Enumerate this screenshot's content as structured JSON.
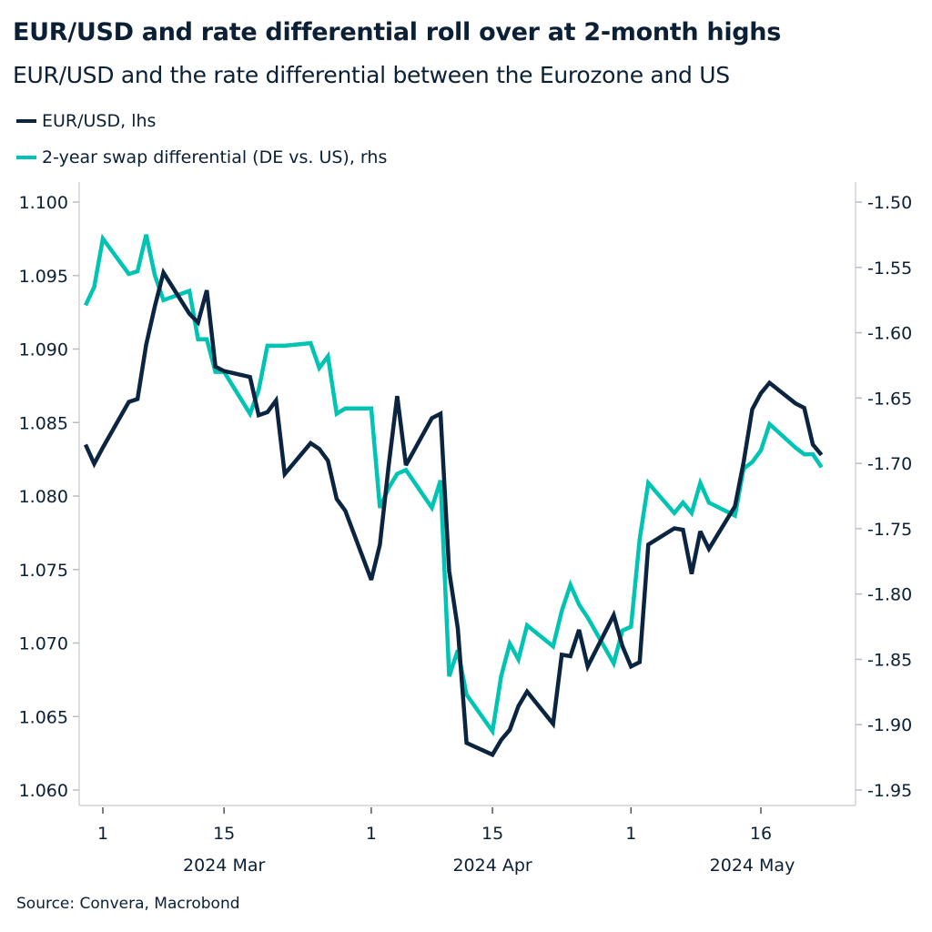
{
  "title": "EUR/USD and rate differential roll over at 2-month highs",
  "subtitle": "EUR/USD and the rate differential between the Eurozone and US",
  "source": "Source: Convera, Macrobond",
  "chart_data": {
    "type": "line",
    "title": "EUR/USD and rate differential roll over at 2-month highs",
    "subtitle": "EUR/USD and the rate differential between the Eurozone and US",
    "legend_position": "top-left",
    "grid": false,
    "x": [
      "2024-02-28",
      "2024-02-29",
      "2024-03-01",
      "2024-03-04",
      "2024-03-05",
      "2024-03-06",
      "2024-03-07",
      "2024-03-08",
      "2024-03-11",
      "2024-03-12",
      "2024-03-13",
      "2024-03-14",
      "2024-03-15",
      "2024-03-18",
      "2024-03-19",
      "2024-03-20",
      "2024-03-21",
      "2024-03-22",
      "2024-03-25",
      "2024-03-26",
      "2024-03-27",
      "2024-03-28",
      "2024-03-29",
      "2024-04-01",
      "2024-04-02",
      "2024-04-03",
      "2024-04-04",
      "2024-04-05",
      "2024-04-08",
      "2024-04-09",
      "2024-04-10",
      "2024-04-11",
      "2024-04-12",
      "2024-04-15",
      "2024-04-16",
      "2024-04-17",
      "2024-04-18",
      "2024-04-19",
      "2024-04-22",
      "2024-04-23",
      "2024-04-24",
      "2024-04-25",
      "2024-04-26",
      "2024-04-29",
      "2024-04-30",
      "2024-05-01",
      "2024-05-02",
      "2024-05-03",
      "2024-05-06",
      "2024-05-07",
      "2024-05-08",
      "2024-05-09",
      "2024-05-10",
      "2024-05-13",
      "2024-05-14",
      "2024-05-15",
      "2024-05-16",
      "2024-05-17",
      "2024-05-20",
      "2024-05-21",
      "2024-05-22",
      "2024-05-23"
    ],
    "x_ticks": [
      {
        "date": "2024-03-01",
        "label": "1"
      },
      {
        "date": "2024-03-15",
        "label": "15"
      },
      {
        "date": "2024-04-01",
        "label": "1"
      },
      {
        "date": "2024-04-15",
        "label": "15"
      },
      {
        "date": "2024-05-01",
        "label": "1"
      },
      {
        "date": "2024-05-16",
        "label": "16"
      }
    ],
    "x_group_labels": [
      {
        "date": "2024-03-15",
        "label": "2024 Mar"
      },
      {
        "date": "2024-04-15",
        "label": "2024 Apr"
      },
      {
        "date": "2024-05-15",
        "label": "2024 May"
      }
    ],
    "y_left": {
      "range": [
        1.06,
        1.1
      ],
      "ticks": [
        "1.060",
        "1.065",
        "1.070",
        "1.075",
        "1.080",
        "1.085",
        "1.090",
        "1.095",
        "1.100"
      ]
    },
    "y_right": {
      "range": [
        -1.95,
        -1.5
      ],
      "ticks": [
        "-1.95",
        "-1.90",
        "-1.85",
        "-1.80",
        "-1.75",
        "-1.70",
        "-1.65",
        "-1.60",
        "-1.55",
        "-1.50"
      ]
    },
    "series": [
      {
        "name": "EUR/USD, lhs",
        "axis": "left",
        "color": "#0b2540",
        "values": [
          1.0835,
          1.0822,
          1.0833,
          1.0864,
          1.0866,
          1.0903,
          1.0929,
          1.0952,
          1.0924,
          1.0918,
          1.094,
          1.0888,
          1.0885,
          1.0881,
          1.0855,
          1.0857,
          1.0865,
          1.0815,
          1.0836,
          1.0832,
          1.0824,
          1.0798,
          1.079,
          1.0743,
          1.0767,
          1.082,
          1.0868,
          1.0821,
          1.0853,
          1.0856,
          1.0749,
          1.071,
          1.0632,
          1.0624,
          1.0634,
          1.0641,
          1.0657,
          1.0667,
          1.0645,
          1.0692,
          1.0691,
          1.0709,
          1.0684,
          1.0719,
          1.0698,
          1.0684,
          1.0687,
          1.0767,
          1.0778,
          1.0777,
          1.0747,
          1.0776,
          1.0764,
          1.0793,
          1.0823,
          1.0859,
          1.087,
          1.0877,
          1.0863,
          1.086,
          1.0835,
          1.0828
        ]
      },
      {
        "name": "2-year swap differential (DE vs. US), rhs",
        "axis": "right",
        "color": "#00c4b3",
        "values": [
          -1.579,
          -1.565,
          -1.528,
          -1.555,
          -1.553,
          -1.525,
          -1.556,
          -1.575,
          -1.568,
          -1.605,
          -1.605,
          -1.63,
          -1.63,
          -1.662,
          -1.644,
          -1.61,
          -1.61,
          -1.61,
          -1.608,
          -1.627,
          -1.618,
          -1.662,
          -1.658,
          -1.658,
          -1.734,
          -1.719,
          -1.708,
          -1.705,
          -1.734,
          -1.713,
          -1.863,
          -1.843,
          -1.877,
          -1.905,
          -1.863,
          -1.838,
          -1.85,
          -1.824,
          -1.84,
          -1.813,
          -1.793,
          -1.808,
          -1.818,
          -1.853,
          -1.828,
          -1.825,
          -1.758,
          -1.715,
          -1.738,
          -1.73,
          -1.738,
          -1.715,
          -1.73,
          -1.74,
          -1.704,
          -1.699,
          -1.69,
          -1.67,
          -1.688,
          -1.693,
          -1.693,
          -1.703
        ]
      }
    ]
  }
}
